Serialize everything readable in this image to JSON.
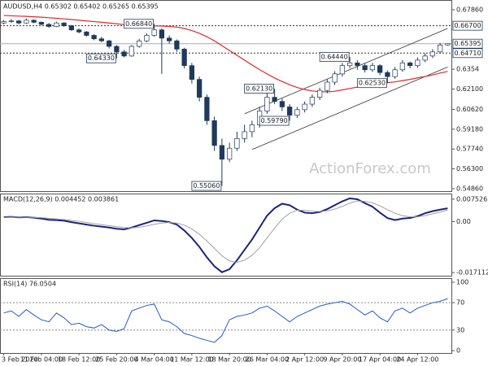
{
  "chart_data": [
    {
      "type": "candlestick",
      "title": "AUDUSD,H4  0.65302 0.65402 0.65265 0.65395",
      "watermark": "ActionForex.com",
      "categories": [
        "3 Feb 2020",
        null,
        null,
        null,
        null,
        "11 Feb 04:00",
        null,
        null,
        null,
        null,
        "18 Feb 12:00",
        null,
        null,
        null,
        null,
        "25 Feb 20:00",
        null,
        null,
        null,
        null,
        "4 Mar 04:00",
        null,
        null,
        null,
        null,
        "11 Mar 12:00",
        null,
        null,
        null,
        null,
        "18 Mar 20:00",
        null,
        null,
        null,
        null,
        "26 Mar 04:00",
        null,
        null,
        null,
        null,
        "2 Apr 12:00",
        null,
        null,
        null,
        null,
        "9 Apr 20:00",
        null,
        null,
        null,
        null,
        "17 Apr 04:00",
        null,
        null,
        null,
        null,
        "24 Apr 12:00",
        null,
        null,
        null,
        null
      ],
      "candles": [
        [
          0.669,
          0.6712,
          0.668,
          0.67
        ],
        [
          0.67,
          0.6718,
          0.669,
          0.6705
        ],
        [
          0.6705,
          0.6712,
          0.668,
          0.669
        ],
        [
          0.669,
          0.6722,
          0.6684,
          0.671
        ],
        [
          0.671,
          0.6715,
          0.6688,
          0.6695
        ],
        [
          0.6695,
          0.6702,
          0.6672,
          0.668
        ],
        [
          0.668,
          0.669,
          0.6655,
          0.6665
        ],
        [
          0.6665,
          0.67,
          0.666,
          0.669
        ],
        [
          0.669,
          0.6695,
          0.6662,
          0.667
        ],
        [
          0.667,
          0.6676,
          0.6632,
          0.664
        ],
        [
          0.664,
          0.665,
          0.6615,
          0.6625
        ],
        [
          0.6625,
          0.6632,
          0.659,
          0.66
        ],
        [
          0.66,
          0.6608,
          0.6565,
          0.6575
        ],
        [
          0.6575,
          0.659,
          0.655,
          0.656
        ],
        [
          0.656,
          0.6568,
          0.6505,
          0.652
        ],
        [
          0.652,
          0.653,
          0.6433,
          0.648
        ],
        [
          0.648,
          0.6495,
          0.644,
          0.645
        ],
        [
          0.645,
          0.653,
          0.6445,
          0.652
        ],
        [
          0.652,
          0.6575,
          0.651,
          0.656
        ],
        [
          0.656,
          0.6615,
          0.655,
          0.66
        ],
        [
          0.66,
          0.6684,
          0.659,
          0.664
        ],
        [
          0.664,
          0.665,
          0.632,
          0.658
        ],
        [
          0.658,
          0.66,
          0.654,
          0.656
        ],
        [
          0.656,
          0.657,
          0.648,
          0.65
        ],
        [
          0.65,
          0.651,
          0.636,
          0.638
        ],
        [
          0.638,
          0.64,
          0.625,
          0.628
        ],
        [
          0.628,
          0.63,
          0.612,
          0.615
        ],
        [
          0.615,
          0.617,
          0.595,
          0.598
        ],
        [
          0.598,
          0.601,
          0.576,
          0.58
        ],
        [
          0.58,
          0.585,
          0.5506,
          0.57
        ],
        [
          0.57,
          0.582,
          0.568,
          0.578
        ],
        [
          0.578,
          0.59,
          0.576,
          0.585
        ],
        [
          0.585,
          0.595,
          0.582,
          0.59
        ],
        [
          0.59,
          0.598,
          0.586,
          0.595
        ],
        [
          0.595,
          0.608,
          0.593,
          0.605
        ],
        [
          0.605,
          0.618,
          0.603,
          0.615
        ],
        [
          0.615,
          0.6213,
          0.61,
          0.612
        ],
        [
          0.612,
          0.614,
          0.605,
          0.608
        ],
        [
          0.608,
          0.61,
          0.5979,
          0.602
        ],
        [
          0.602,
          0.608,
          0.6,
          0.606
        ],
        [
          0.606,
          0.612,
          0.604,
          0.61
        ],
        [
          0.61,
          0.617,
          0.608,
          0.615
        ],
        [
          0.615,
          0.622,
          0.613,
          0.62
        ],
        [
          0.62,
          0.628,
          0.618,
          0.626
        ],
        [
          0.626,
          0.634,
          0.624,
          0.632
        ],
        [
          0.632,
          0.64,
          0.63,
          0.638
        ],
        [
          0.638,
          0.6444,
          0.636,
          0.64
        ],
        [
          0.64,
          0.642,
          0.635,
          0.638
        ],
        [
          0.638,
          0.6395,
          0.633,
          0.635
        ],
        [
          0.635,
          0.64,
          0.6335,
          0.638
        ],
        [
          0.638,
          0.639,
          0.631,
          0.633
        ],
        [
          0.633,
          0.6345,
          0.6253,
          0.63
        ],
        [
          0.63,
          0.637,
          0.6285,
          0.635
        ],
        [
          0.635,
          0.642,
          0.6335,
          0.64
        ],
        [
          0.64,
          0.641,
          0.636,
          0.638
        ],
        [
          0.638,
          0.644,
          0.6365,
          0.642
        ],
        [
          0.642,
          0.647,
          0.6405,
          0.645
        ],
        [
          0.645,
          0.65,
          0.6435,
          0.648
        ],
        [
          0.648,
          0.6545,
          0.647,
          0.653
        ],
        [
          0.65302,
          0.65402,
          0.65265,
          0.65395
        ]
      ],
      "up_color": "#ffffff",
      "down_color": "#1f3a5a",
      "candle_stroke": "#1f3a5a",
      "ma_values": [
        0.6745,
        0.6742,
        0.674,
        0.6738,
        0.6735,
        0.6732,
        0.6728,
        0.6724,
        0.672,
        0.6715,
        0.671,
        0.6705,
        0.67,
        0.6695,
        0.669,
        0.6684,
        0.6678,
        0.6674,
        0.6672,
        0.667,
        0.6669,
        0.6668,
        0.6665,
        0.666,
        0.665,
        0.6635,
        0.6615,
        0.659,
        0.656,
        0.6525,
        0.649,
        0.6455,
        0.642,
        0.6385,
        0.6351,
        0.632,
        0.629,
        0.6265,
        0.6241,
        0.6221,
        0.6206,
        0.6196,
        0.6191,
        0.6189,
        0.6194,
        0.6204,
        0.6214,
        0.6224,
        0.6232,
        0.6241,
        0.6248,
        0.6256,
        0.6262,
        0.6271,
        0.628,
        0.6291,
        0.6301,
        0.6312,
        0.6326,
        0.6338
      ],
      "ma_color": "#e0282a",
      "channel": [
        [
          [
            32,
            0.603
          ],
          [
            59,
            0.665
          ]
        ],
        [
          [
            33,
            0.577
          ],
          [
            59,
            0.637
          ]
        ]
      ],
      "annotations": [
        {
          "index": 20,
          "value": 0.6684,
          "label": "0.66840"
        },
        {
          "index": 15,
          "value": 0.6433,
          "label": "0.64330"
        },
        {
          "index": 36,
          "value": 0.6213,
          "label": "0.62130"
        },
        {
          "index": 38,
          "value": 0.5979,
          "label": "0.59790"
        },
        {
          "index": 29,
          "value": 0.5506,
          "label": "0.55060"
        },
        {
          "index": 46,
          "value": 0.6444,
          "label": "0.64440"
        },
        {
          "index": 51,
          "value": 0.6253,
          "label": "0.62530"
        }
      ],
      "levels": [
        {
          "value": 0.667,
          "label": "0.66700"
        },
        {
          "value": 0.6471,
          "label": "0.64710"
        }
      ],
      "last_price": {
        "value": 0.65395,
        "label": "0.65395"
      },
      "ylim": [
        0.5468,
        0.6857
      ],
      "yticks": [
        {
          "value": 0.6786,
          "label": "0.67860"
        },
        0.6354,
        {
          "value": 0.621,
          "label": "0.62100"
        },
        {
          "value": 0.6062,
          "label": "0.60620"
        },
        {
          "value": 0.5918,
          "label": "0.59180"
        },
        {
          "value": 0.5774,
          "label": "0.57740"
        },
        {
          "value": 0.563,
          "label": "0.56300"
        },
        {
          "value": 0.5486,
          "label": "0.54860"
        }
      ]
    },
    {
      "type": "macd",
      "title": "MACD(12,26,9) 0.004452 0.003861",
      "series": [
        {
          "color": "#1a237e",
          "values": [
            0.0015,
            0.0016,
            0.0014,
            0.0015,
            0.0013,
            0.001,
            0.0006,
            0.0005,
            0.0003,
            -0.0002,
            -0.0006,
            -0.001,
            -0.0014,
            -0.0017,
            -0.002,
            -0.0024,
            -0.0026,
            -0.002,
            -0.0012,
            -0.0004,
            0.0004,
            0.0002,
            -0.0002,
            -0.001,
            -0.003,
            -0.0055,
            -0.0085,
            -0.012,
            -0.015,
            -0.017,
            -0.016,
            -0.013,
            -0.0095,
            -0.006,
            -0.002,
            0.002,
            0.0045,
            0.006,
            0.0055,
            0.004,
            0.003,
            0.0028,
            0.0032,
            0.0042,
            0.0055,
            0.0068,
            0.0078,
            0.0075,
            0.0062,
            0.005,
            0.003,
            0.0012,
            0.0005,
            0.001,
            0.0012,
            0.0018,
            0.0028,
            0.0035,
            0.004,
            0.004452
          ]
        },
        {
          "color": "#a0a0a0",
          "values": [
            0.0014,
            0.0015,
            0.0015,
            0.0015,
            0.0014,
            0.0013,
            0.0011,
            0.0009,
            0.0007,
            0.0004,
            0.0001,
            -0.0003,
            -0.0007,
            -0.001,
            -0.0014,
            -0.0017,
            -0.002,
            -0.0021,
            -0.0019,
            -0.0015,
            -0.0009,
            -0.0005,
            -0.0003,
            -0.0005,
            -0.0012,
            -0.0025,
            -0.0043,
            -0.0065,
            -0.009,
            -0.0115,
            -0.0132,
            -0.0137,
            -0.013,
            -0.0113,
            -0.0088,
            -0.0055,
            -0.0022,
            0.0008,
            0.0028,
            0.0038,
            0.0038,
            0.0035,
            0.0034,
            0.0036,
            0.0042,
            0.0051,
            0.0062,
            0.0069,
            0.0068,
            0.0063,
            0.0053,
            0.004,
            0.0028,
            0.002,
            0.0016,
            0.0016,
            0.002,
            0.0026,
            0.0032,
            0.003861
          ]
        }
      ],
      "ylim": [
        -0.01818,
        0.00913
      ],
      "yticks": [
        0.007526,
        {
          "value": 0,
          "label": "0.00"
        },
        -0.017112
      ]
    },
    {
      "type": "rsi",
      "title": "RSI(14) 76.0504",
      "series": [
        {
          "color": "#1e5bc6",
          "values": [
            55,
            58,
            50,
            60,
            52,
            45,
            42,
            55,
            48,
            38,
            40,
            35,
            33,
            38,
            30,
            28,
            32,
            58,
            62,
            66,
            68,
            45,
            42,
            35,
            25,
            22,
            18,
            15,
            12,
            22,
            45,
            50,
            52,
            55,
            62,
            65,
            58,
            50,
            42,
            50,
            55,
            60,
            65,
            68,
            70,
            72,
            68,
            60,
            52,
            58,
            48,
            42,
            58,
            62,
            55,
            62,
            66,
            70,
            72,
            76.0504
          ]
        }
      ],
      "levels": [
        70,
        30
      ],
      "ylim": [
        -3.5,
        104.7
      ],
      "yticks": [
        100,
        70,
        30,
        0
      ]
    }
  ]
}
